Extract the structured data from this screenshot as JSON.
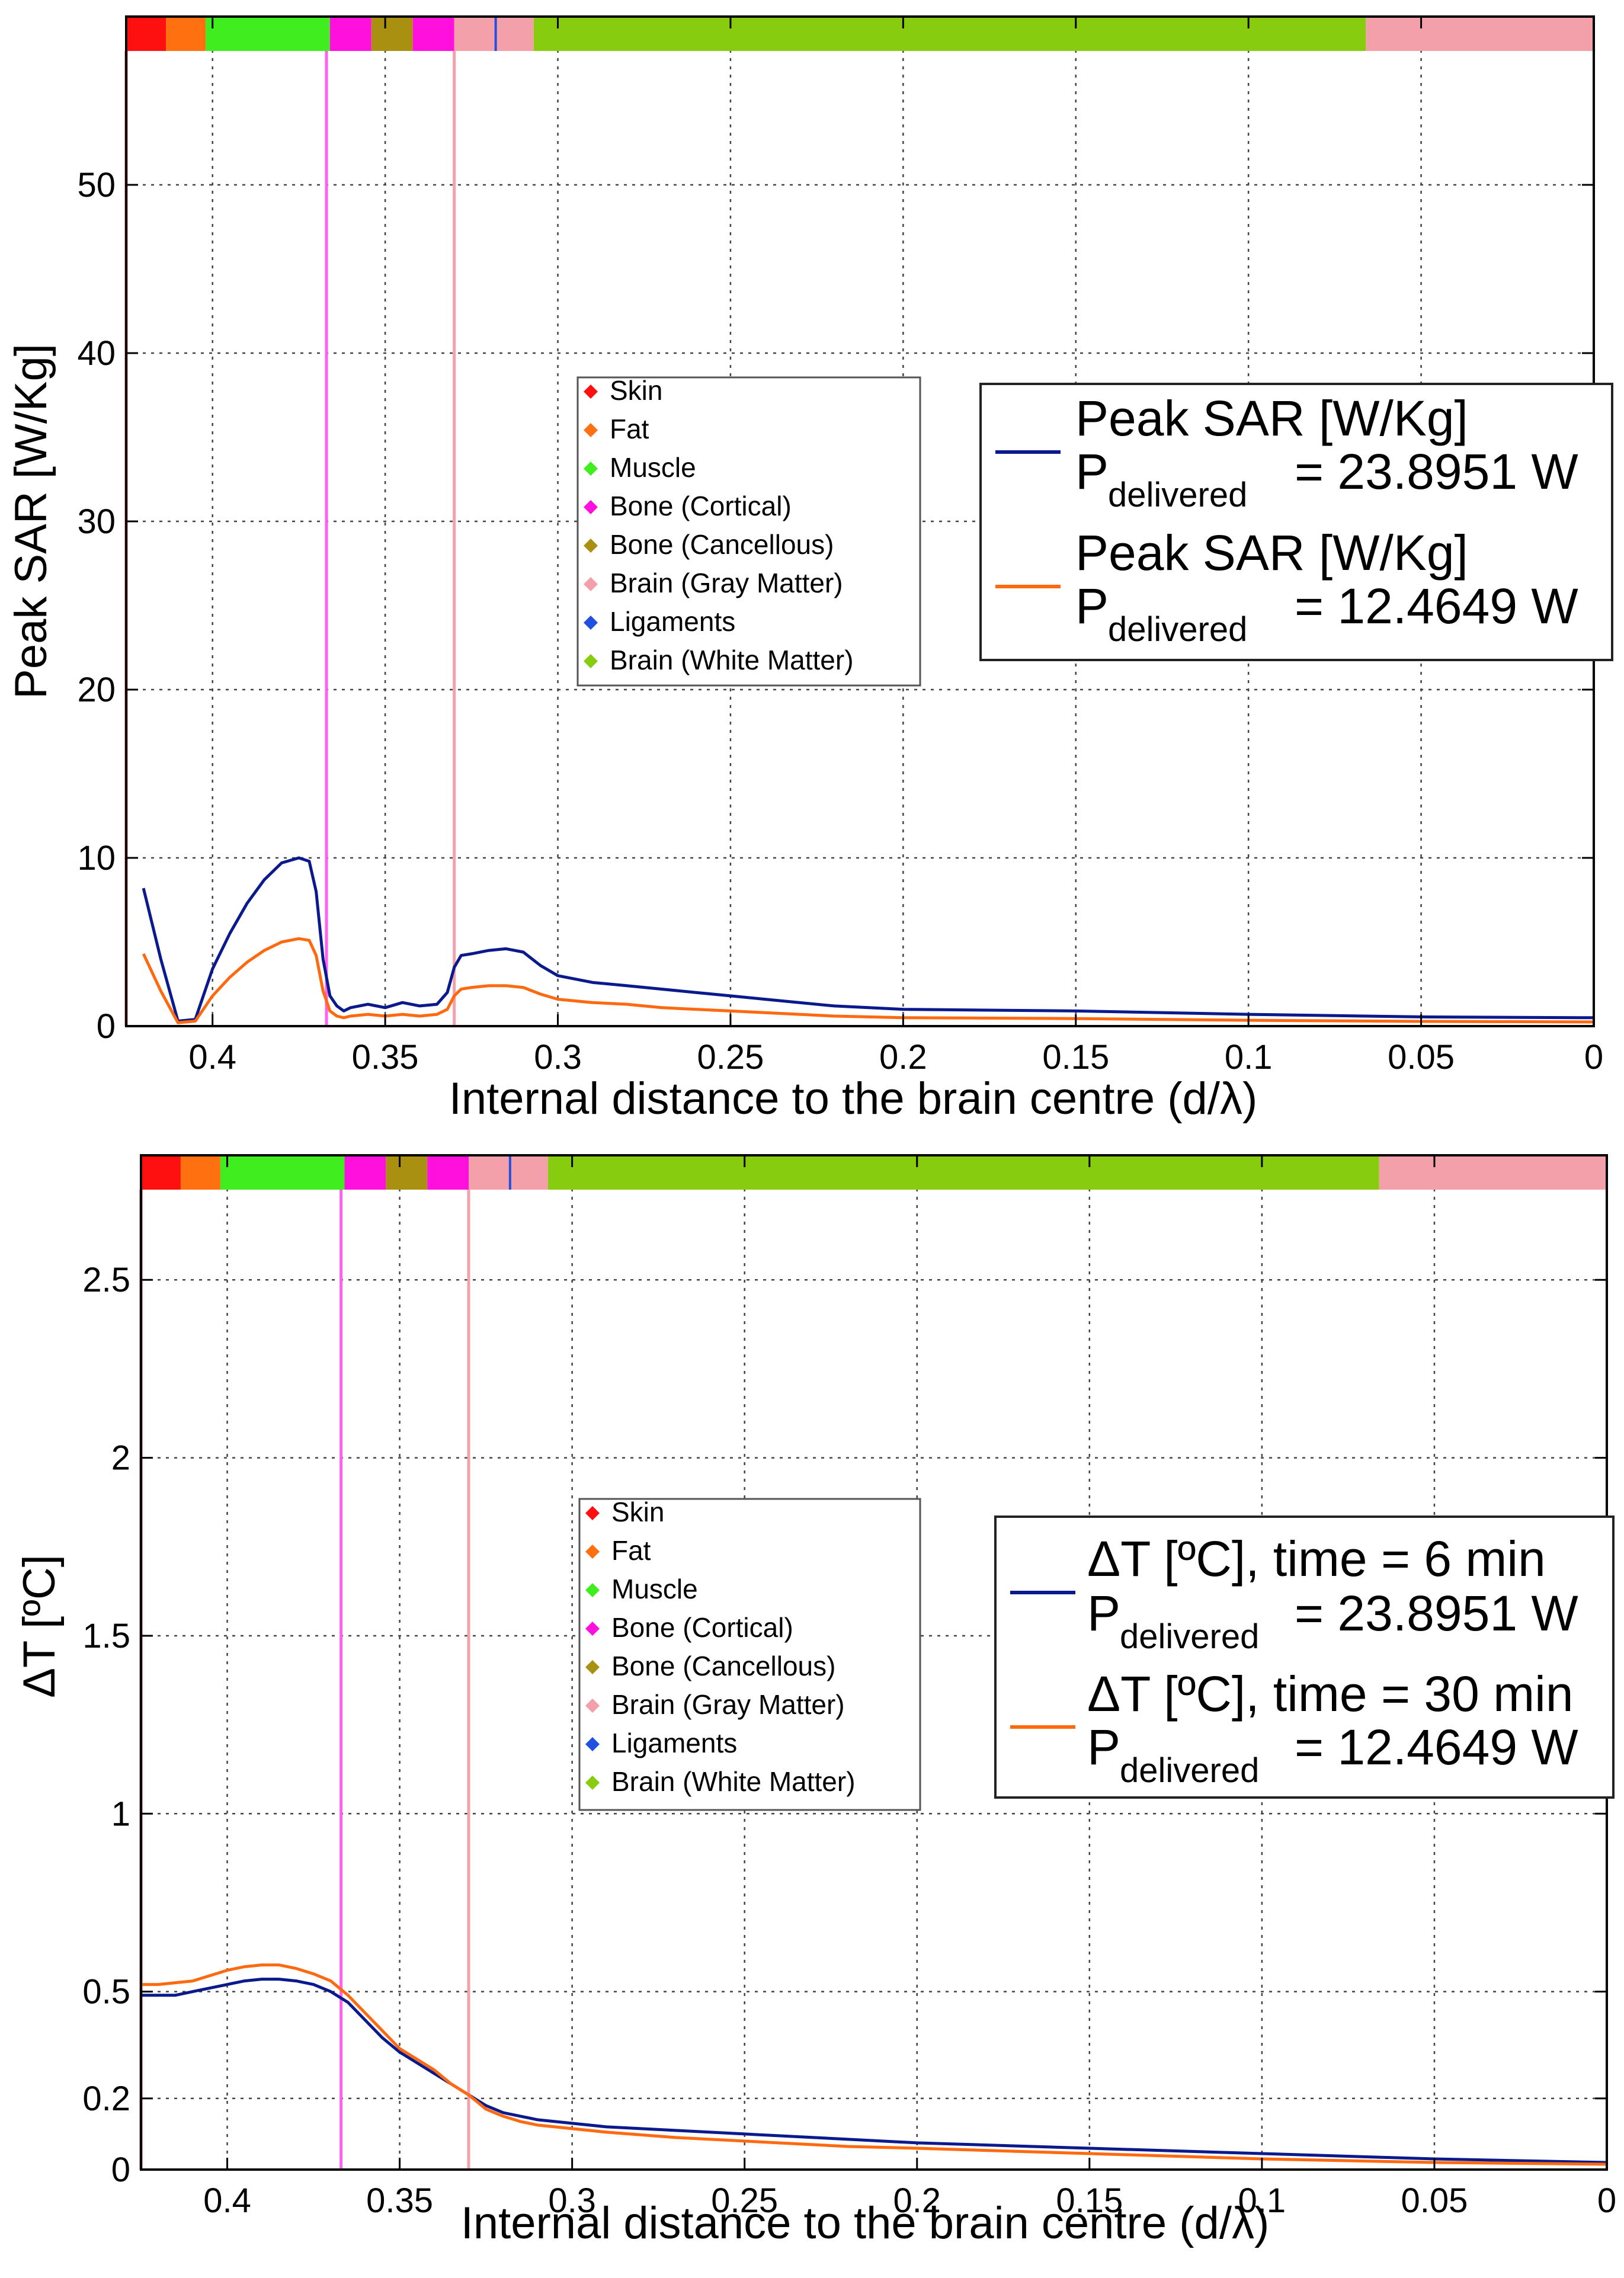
{
  "chart_data": [
    {
      "type": "line",
      "title": "",
      "xlabel": "Internal distance to the brain centre (d/λ)",
      "ylabel": "Peak SAR [W/Kg]",
      "x_reversed": true,
      "xlim": [
        0,
        0.425
      ],
      "ylim": [
        0,
        60
      ],
      "xticks": [
        0,
        0.05,
        0.1,
        0.15,
        0.2,
        0.25,
        0.3,
        0.35,
        0.4
      ],
      "xtick_labels": [
        "0",
        "0.05",
        "0.1",
        "0.15",
        "0.2",
        "0.25",
        "0.3",
        "0.35",
        "0.4"
      ],
      "yticks": [
        0,
        10,
        20,
        30,
        40,
        50
      ],
      "ytick_labels": [
        "0",
        "10",
        "20",
        "30",
        "40",
        "50"
      ],
      "grid": true,
      "tissue_bar": [
        {
          "tissue": "Skin",
          "from": 0.425,
          "to": 0.4135,
          "color": "#ff1010"
        },
        {
          "tissue": "Fat",
          "from": 0.4135,
          "to": 0.402,
          "color": "#ff7010"
        },
        {
          "tissue": "Muscle",
          "from": 0.402,
          "to": 0.366,
          "color": "#40ee20"
        },
        {
          "tissue": "Bone (Cortical)",
          "from": 0.366,
          "to": 0.354,
          "color": "#ff10dd"
        },
        {
          "tissue": "Bone (Cancellous)",
          "from": 0.354,
          "to": 0.342,
          "color": "#aa9010"
        },
        {
          "tissue": "Bone (Cortical)",
          "from": 0.342,
          "to": 0.33,
          "color": "#ff10dd"
        },
        {
          "tissue": "Brain (Gray Matter)",
          "from": 0.33,
          "to": 0.307,
          "color": "#f4a0aa"
        },
        {
          "tissue": "Brain (White Matter)",
          "from": 0.307,
          "to": 0.066,
          "color": "#88cc10"
        },
        {
          "tissue": "Brain (Gray Matter)",
          "from": 0.066,
          "to": 0.0,
          "color": "#f4a0aa"
        }
      ],
      "ligament_marker": 0.318,
      "boundary_lines": [
        {
          "x": 0.425,
          "color": "#ff4040"
        },
        {
          "x": 0.367,
          "color": "#ff60ee"
        },
        {
          "x": 0.33,
          "color": "#f4a0aa"
        }
      ],
      "tissue_legend": {
        "items": [
          {
            "label": "Skin",
            "color": "#ff1010"
          },
          {
            "label": "Fat",
            "color": "#ff7010"
          },
          {
            "label": "Muscle",
            "color": "#40ee20"
          },
          {
            "label": "Bone (Cortical)",
            "color": "#ff10dd"
          },
          {
            "label": "Bone (Cancellous)",
            "color": "#aa9010"
          },
          {
            "label": "Brain (Gray Matter)",
            "color": "#f4a0aa"
          },
          {
            "label": "Ligaments",
            "color": "#2050e0"
          },
          {
            "label": "Brain (White Matter)",
            "color": "#88cc10"
          }
        ]
      },
      "series_legend_placement": "right",
      "series": [
        {
          "name_line1": "Peak SAR [W/Kg]",
          "name_p": "P",
          "name_sub": "delivered",
          "name_value": "= 23.8951 W",
          "color": "#0a1a8c",
          "x": [
            0.42,
            0.415,
            0.41,
            0.405,
            0.4,
            0.395,
            0.39,
            0.385,
            0.38,
            0.375,
            0.372,
            0.37,
            0.368,
            0.366,
            0.364,
            0.362,
            0.36,
            0.355,
            0.35,
            0.345,
            0.34,
            0.335,
            0.332,
            0.33,
            0.328,
            0.325,
            0.32,
            0.315,
            0.31,
            0.305,
            0.3,
            0.29,
            0.28,
            0.27,
            0.26,
            0.25,
            0.24,
            0.22,
            0.2,
            0.15,
            0.1,
            0.05,
            0.0
          ],
          "y": [
            8.2,
            4.0,
            0.3,
            0.4,
            3.4,
            5.5,
            7.3,
            8.7,
            9.7,
            10.0,
            9.8,
            8.0,
            4.0,
            1.8,
            1.2,
            0.9,
            1.1,
            1.3,
            1.1,
            1.4,
            1.2,
            1.3,
            2.0,
            3.5,
            4.2,
            4.3,
            4.5,
            4.6,
            4.4,
            3.6,
            3.0,
            2.6,
            2.4,
            2.2,
            2.0,
            1.8,
            1.6,
            1.2,
            1.0,
            0.9,
            0.7,
            0.55,
            0.5
          ]
        },
        {
          "name_line1": "Peak SAR [W/Kg]",
          "name_p": "P",
          "name_sub": "delivered",
          "name_value": "= 12.4649 W",
          "color": "#ff6a10",
          "x": [
            0.42,
            0.415,
            0.41,
            0.405,
            0.4,
            0.395,
            0.39,
            0.385,
            0.38,
            0.375,
            0.372,
            0.37,
            0.368,
            0.366,
            0.364,
            0.362,
            0.36,
            0.355,
            0.35,
            0.345,
            0.34,
            0.335,
            0.332,
            0.33,
            0.328,
            0.325,
            0.32,
            0.315,
            0.31,
            0.305,
            0.3,
            0.29,
            0.28,
            0.27,
            0.26,
            0.25,
            0.24,
            0.22,
            0.2,
            0.15,
            0.1,
            0.05,
            0.0
          ],
          "y": [
            4.3,
            2.1,
            0.2,
            0.3,
            1.8,
            2.9,
            3.8,
            4.5,
            5.0,
            5.2,
            5.1,
            4.2,
            2.1,
            0.9,
            0.6,
            0.5,
            0.6,
            0.7,
            0.6,
            0.7,
            0.6,
            0.7,
            1.0,
            1.8,
            2.2,
            2.3,
            2.4,
            2.4,
            2.3,
            1.9,
            1.6,
            1.4,
            1.3,
            1.1,
            1.0,
            0.9,
            0.8,
            0.6,
            0.5,
            0.45,
            0.35,
            0.28,
            0.25
          ]
        }
      ]
    },
    {
      "type": "line",
      "title": "",
      "xlabel": "Internal distance to the brain centre (d/λ)",
      "ylabel": "ΔT [ºC]",
      "x_reversed": true,
      "xlim": [
        0,
        0.425
      ],
      "ylim": [
        0,
        2.85
      ],
      "xticks": [
        0,
        0.05,
        0.1,
        0.15,
        0.2,
        0.25,
        0.3,
        0.35,
        0.4
      ],
      "xtick_labels": [
        "0",
        "0.05",
        "0.1",
        "0.15",
        "0.2",
        "0.25",
        "0.3",
        "0.35",
        "0.4"
      ],
      "yticks": [
        0,
        0.2,
        0.5,
        1,
        1.5,
        2,
        2.5
      ],
      "ytick_labels": [
        "0",
        "0.2",
        "0.5",
        "1",
        "1.5",
        "2",
        "2.5"
      ],
      "grid": true,
      "tissue_bar": [
        {
          "tissue": "Skin",
          "from": 0.425,
          "to": 0.4135,
          "color": "#ff1010"
        },
        {
          "tissue": "Fat",
          "from": 0.4135,
          "to": 0.402,
          "color": "#ff7010"
        },
        {
          "tissue": "Muscle",
          "from": 0.402,
          "to": 0.366,
          "color": "#40ee20"
        },
        {
          "tissue": "Bone (Cortical)",
          "from": 0.366,
          "to": 0.354,
          "color": "#ff10dd"
        },
        {
          "tissue": "Bone (Cancellous)",
          "from": 0.354,
          "to": 0.342,
          "color": "#aa9010"
        },
        {
          "tissue": "Bone (Cortical)",
          "from": 0.342,
          "to": 0.33,
          "color": "#ff10dd"
        },
        {
          "tissue": "Brain (Gray Matter)",
          "from": 0.33,
          "to": 0.307,
          "color": "#f4a0aa"
        },
        {
          "tissue": "Brain (White Matter)",
          "from": 0.307,
          "to": 0.066,
          "color": "#88cc10"
        },
        {
          "tissue": "Brain (Gray Matter)",
          "from": 0.066,
          "to": 0.0,
          "color": "#f4a0aa"
        }
      ],
      "ligament_marker": 0.318,
      "boundary_lines": [
        {
          "x": 0.425,
          "color": "#ff4040"
        },
        {
          "x": 0.367,
          "color": "#ff60ee"
        },
        {
          "x": 0.33,
          "color": "#f4a0aa"
        }
      ],
      "tissue_legend": {
        "items": [
          {
            "label": "Skin",
            "color": "#ff1010"
          },
          {
            "label": "Fat",
            "color": "#ff7010"
          },
          {
            "label": "Muscle",
            "color": "#40ee20"
          },
          {
            "label": "Bone (Cortical)",
            "color": "#ff10dd"
          },
          {
            "label": "Bone (Cancellous)",
            "color": "#aa9010"
          },
          {
            "label": "Brain (Gray Matter)",
            "color": "#f4a0aa"
          },
          {
            "label": "Ligaments",
            "color": "#2050e0"
          },
          {
            "label": "Brain (White Matter)",
            "color": "#88cc10"
          }
        ]
      },
      "series_legend_placement": "right",
      "series": [
        {
          "name_line1": "ΔT [ºC], time = 6 min",
          "name_p": "P",
          "name_sub": "delivered",
          "name_value": "= 23.8951 W",
          "color": "#0a1a8c",
          "x": [
            0.425,
            0.42,
            0.415,
            0.41,
            0.405,
            0.4,
            0.395,
            0.39,
            0.385,
            0.38,
            0.375,
            0.37,
            0.365,
            0.36,
            0.355,
            0.35,
            0.345,
            0.34,
            0.335,
            0.33,
            0.325,
            0.32,
            0.315,
            0.31,
            0.3,
            0.29,
            0.27,
            0.25,
            0.22,
            0.2,
            0.15,
            0.1,
            0.05,
            0.0
          ],
          "y": [
            0.49,
            0.49,
            0.49,
            0.5,
            0.51,
            0.52,
            0.53,
            0.535,
            0.535,
            0.53,
            0.52,
            0.5,
            0.47,
            0.42,
            0.37,
            0.33,
            0.3,
            0.27,
            0.24,
            0.21,
            0.18,
            0.16,
            0.15,
            0.14,
            0.13,
            0.12,
            0.11,
            0.1,
            0.085,
            0.075,
            0.06,
            0.045,
            0.03,
            0.02
          ]
        },
        {
          "name_line1": "ΔT [ºC], time = 30 min",
          "name_p": "P",
          "name_sub": "delivered",
          "name_value": "= 12.4649 W",
          "color": "#ff6a10",
          "x": [
            0.425,
            0.42,
            0.415,
            0.41,
            0.405,
            0.4,
            0.395,
            0.39,
            0.385,
            0.38,
            0.375,
            0.37,
            0.365,
            0.36,
            0.355,
            0.35,
            0.345,
            0.34,
            0.335,
            0.33,
            0.325,
            0.32,
            0.315,
            0.31,
            0.3,
            0.29,
            0.27,
            0.25,
            0.22,
            0.2,
            0.15,
            0.1,
            0.05,
            0.0
          ],
          "y": [
            0.52,
            0.52,
            0.525,
            0.53,
            0.545,
            0.56,
            0.57,
            0.575,
            0.575,
            0.565,
            0.55,
            0.53,
            0.49,
            0.44,
            0.39,
            0.34,
            0.31,
            0.28,
            0.24,
            0.21,
            0.17,
            0.15,
            0.135,
            0.125,
            0.115,
            0.105,
            0.09,
            0.08,
            0.065,
            0.06,
            0.045,
            0.03,
            0.02,
            0.015
          ]
        }
      ]
    }
  ]
}
